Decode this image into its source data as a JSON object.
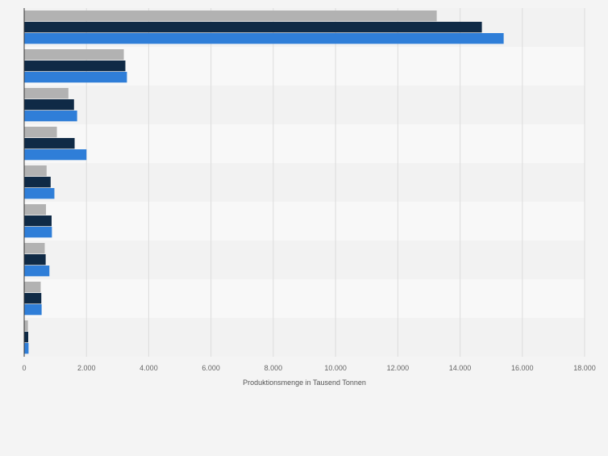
{
  "chart_data": {
    "type": "bar",
    "orientation": "horizontal",
    "categories": [
      "",
      "",
      "",
      "",
      "",
      "",
      "",
      "",
      ""
    ],
    "series": [
      {
        "name": "",
        "color": "#b2b2b2",
        "values": [
          13250,
          3200,
          1420,
          1050,
          720,
          700,
          660,
          530,
          120
        ]
      },
      {
        "name": "",
        "color": "#0f2a46",
        "values": [
          14700,
          3250,
          1600,
          1620,
          850,
          880,
          690,
          550,
          130
        ]
      },
      {
        "name": "",
        "color": "#2f7ed8",
        "values": [
          15400,
          3300,
          1700,
          2000,
          970,
          890,
          810,
          560,
          140
        ]
      }
    ],
    "xlabel": "Produktionsmenge in Tausend Tonnen",
    "xlim": [
      0,
      18000
    ],
    "xticks": [
      0,
      2000,
      4000,
      6000,
      8000,
      10000,
      12000,
      14000,
      16000,
      18000
    ],
    "xtick_labels": [
      "0",
      "2.000",
      "4.000",
      "6.000",
      "8.000",
      "10.000",
      "12.000",
      "14.000",
      "16.000",
      "18.000"
    ],
    "grid": true,
    "legend": "none"
  }
}
